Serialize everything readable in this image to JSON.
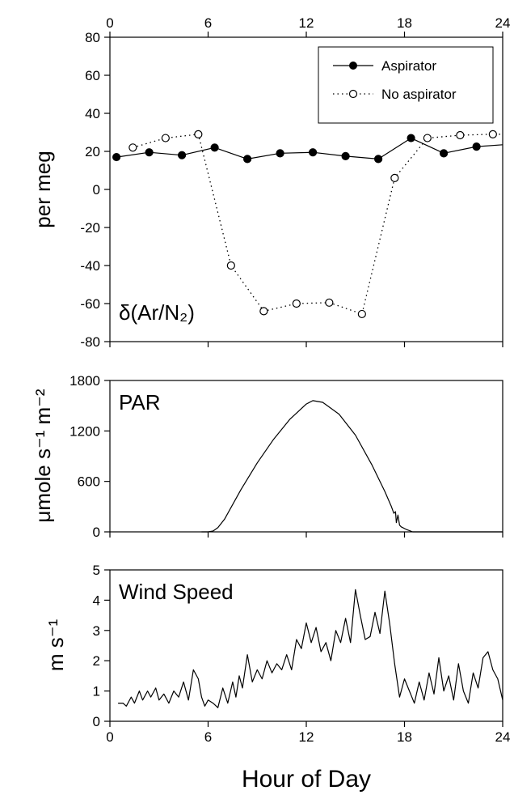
{
  "colors": {
    "axis": "#000000",
    "line": "#000000",
    "open_marker_fill": "#ffffff"
  },
  "x_axis": {
    "range": [
      0,
      24
    ],
    "ticks": [
      0,
      6,
      12,
      18,
      24
    ],
    "tick_labels": [
      "0",
      "6",
      "12",
      "18",
      "24"
    ],
    "title": "Hour of Day"
  },
  "chart_data": [
    {
      "type": "line",
      "panel_label": "δ(Ar/N₂)",
      "ylabel": "per meg",
      "ylim": [
        -80,
        80
      ],
      "yticks": [
        -80,
        -60,
        -40,
        -20,
        0,
        20,
        40,
        60,
        80
      ],
      "ytick_labels": [
        "-80",
        "-60",
        "-40",
        "-20",
        "0",
        "20",
        "40",
        "60",
        "80"
      ],
      "top_ticks_labeled": true,
      "legend": {
        "placement": "top-right",
        "entries": [
          "Aspirator",
          "No aspirator"
        ]
      },
      "series": [
        {
          "name": "Aspirator",
          "style": "solid-filled-circles",
          "x": [
            0.4,
            2.4,
            4.4,
            6.4,
            8.4,
            10.4,
            12.4,
            14.4,
            16.4,
            18.4,
            20.4,
            22.4,
            24
          ],
          "y": [
            17,
            19.5,
            18,
            22,
            16,
            19,
            19.5,
            17.5,
            16,
            27,
            19,
            22.5,
            23.5
          ],
          "markers": [
            true,
            true,
            true,
            true,
            true,
            true,
            true,
            true,
            true,
            true,
            true,
            true,
            false
          ]
        },
        {
          "name": "No aspirator",
          "style": "dotted-open-circles",
          "x": [
            1.4,
            3.4,
            5.4,
            7.4,
            9.4,
            11.4,
            13.4,
            15.4,
            17.4,
            19.4,
            21.4,
            23.4,
            24
          ],
          "y": [
            22,
            27,
            29,
            -40,
            -64,
            -60,
            -59.5,
            -65.5,
            6,
            27,
            28.5,
            29,
            29
          ],
          "markers": [
            true,
            true,
            true,
            true,
            true,
            true,
            true,
            true,
            true,
            true,
            true,
            true,
            false
          ]
        }
      ]
    },
    {
      "type": "line",
      "panel_label": "PAR",
      "ylabel": "μmole s⁻¹ m⁻²",
      "ylim": [
        0,
        1800
      ],
      "yticks": [
        0,
        600,
        1200,
        1800
      ],
      "ytick_labels": [
        "0",
        "600",
        "1200",
        "1800"
      ],
      "series": [
        {
          "style": "solid",
          "x": [
            5.6,
            6.0,
            6.3,
            6.6,
            7,
            8,
            9,
            10,
            11,
            12,
            12.4,
            13,
            14,
            15,
            16,
            16.8,
            17.2,
            17.35,
            17.45,
            17.5,
            17.6,
            17.7,
            17.8,
            18.1,
            18.5,
            19,
            20,
            21,
            22,
            23,
            24
          ],
          "y": [
            0,
            0,
            10,
            50,
            150,
            500,
            820,
            1100,
            1340,
            1520,
            1560,
            1540,
            1400,
            1150,
            800,
            480,
            300,
            220,
            240,
            110,
            200,
            80,
            60,
            30,
            0,
            0,
            0,
            0,
            0,
            0,
            0
          ]
        }
      ]
    },
    {
      "type": "line",
      "panel_label": "Wind Speed",
      "ylabel": "m s⁻¹",
      "ylim": [
        0,
        5
      ],
      "yticks": [
        0,
        1,
        2,
        3,
        4,
        5
      ],
      "ytick_labels": [
        "0",
        "1",
        "2",
        "3",
        "4",
        "5"
      ],
      "series": [
        {
          "style": "solid",
          "x": [
            0.5,
            0.8,
            1.0,
            1.3,
            1.5,
            1.8,
            2.0,
            2.3,
            2.5,
            2.8,
            3.0,
            3.3,
            3.6,
            3.9,
            4.2,
            4.5,
            4.8,
            5.1,
            5.4,
            5.6,
            5.8,
            6.0,
            6.3,
            6.6,
            6.9,
            7.2,
            7.5,
            7.7,
            7.9,
            8.1,
            8.4,
            8.7,
            9.0,
            9.3,
            9.6,
            9.9,
            10.2,
            10.5,
            10.8,
            11.1,
            11.4,
            11.7,
            12.0,
            12.3,
            12.6,
            12.9,
            13.2,
            13.5,
            13.8,
            14.1,
            14.4,
            14.7,
            15.0,
            15.3,
            15.6,
            15.9,
            16.2,
            16.5,
            16.8,
            17.1,
            17.4,
            17.7,
            18.0,
            18.3,
            18.6,
            18.9,
            19.2,
            19.5,
            19.8,
            20.1,
            20.4,
            20.7,
            21.0,
            21.3,
            21.6,
            21.9,
            22.2,
            22.5,
            22.8,
            23.1,
            23.4,
            23.7,
            24.0
          ],
          "y": [
            0.6,
            0.6,
            0.5,
            0.8,
            0.6,
            1.0,
            0.7,
            1.0,
            0.8,
            1.1,
            0.7,
            0.9,
            0.6,
            1.0,
            0.8,
            1.3,
            0.7,
            1.7,
            1.4,
            0.8,
            0.5,
            0.7,
            0.6,
            0.45,
            1.1,
            0.6,
            1.3,
            0.8,
            1.5,
            1.1,
            2.2,
            1.3,
            1.7,
            1.4,
            2.0,
            1.6,
            1.9,
            1.7,
            2.2,
            1.7,
            2.7,
            2.4,
            3.25,
            2.6,
            3.1,
            2.3,
            2.6,
            2.0,
            3.0,
            2.6,
            3.4,
            2.6,
            4.35,
            3.5,
            2.7,
            2.8,
            3.6,
            2.9,
            4.3,
            3.2,
            1.9,
            0.8,
            1.4,
            1.0,
            0.6,
            1.3,
            0.7,
            1.6,
            0.9,
            2.1,
            1.0,
            1.5,
            0.7,
            1.9,
            1.0,
            0.6,
            1.6,
            1.1,
            2.1,
            2.3,
            1.7,
            1.4,
            0.7
          ]
        }
      ]
    }
  ]
}
